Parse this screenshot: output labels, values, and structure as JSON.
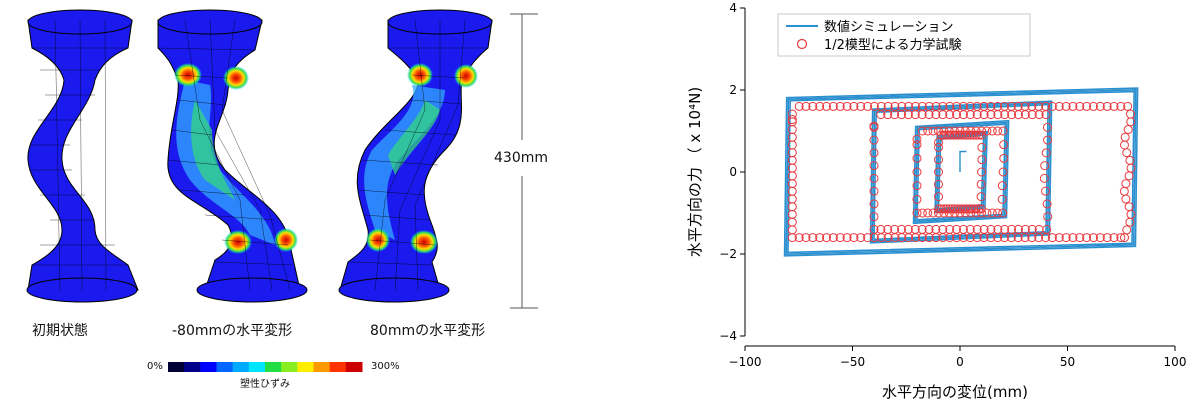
{
  "fem_panel": {
    "captions": [
      "初期状態",
      "-80mmの水平変形",
      "80mmの水平変形"
    ],
    "dimension_label": "430mm",
    "colorbar": {
      "min_label": "0%",
      "max_label": "300%",
      "title": "塑性ひずみ",
      "colors": [
        "#000033",
        "#00008b",
        "#0000ff",
        "#0066ff",
        "#00aaff",
        "#00e5ff",
        "#22dd44",
        "#88ee22",
        "#ffee00",
        "#ff9900",
        "#ff3300",
        "#cc0000"
      ]
    },
    "colors": {
      "base_blue": "#1a1aee",
      "outline": "#000000"
    }
  },
  "chart_data": {
    "type": "scatter",
    "xlabel": "水平方向の変位(mm)",
    "ylabel": "水平方向の力 （ x 10⁴N)",
    "xlim": [
      -100,
      100
    ],
    "ylim": [
      -4,
      4
    ],
    "xticks": [
      -100,
      -50,
      0,
      50,
      100
    ],
    "yticks": [
      -4,
      -2,
      0,
      2,
      4
    ],
    "legend": [
      {
        "name": "数値シミュレーション",
        "style": "line",
        "color": "#2a8fcf"
      },
      {
        "name": "1/2模型による力学試験",
        "style": "circle",
        "color": "#e8393e"
      }
    ],
    "series": [
      {
        "name": "数値シミュレーション",
        "loops": [
          {
            "amplitude": 80,
            "force": 1.85,
            "cycles": 3
          },
          {
            "amplitude": 40,
            "force": 1.55,
            "cycles": 3
          },
          {
            "amplitude": 20,
            "force": 1.1,
            "cycles": 3
          },
          {
            "amplitude": 10,
            "force": 0.85,
            "cycles": 3
          }
        ]
      },
      {
        "name": "1/2模型による力学試験",
        "loops": [
          {
            "amplitude": 78,
            "force": 1.6
          },
          {
            "amplitude": 40,
            "force": 1.4
          },
          {
            "amplitude": 20,
            "force": 1.0
          },
          {
            "amplitude": 10,
            "force": 0.9
          }
        ]
      }
    ],
    "grid": false,
    "legend_position": "top-left"
  }
}
